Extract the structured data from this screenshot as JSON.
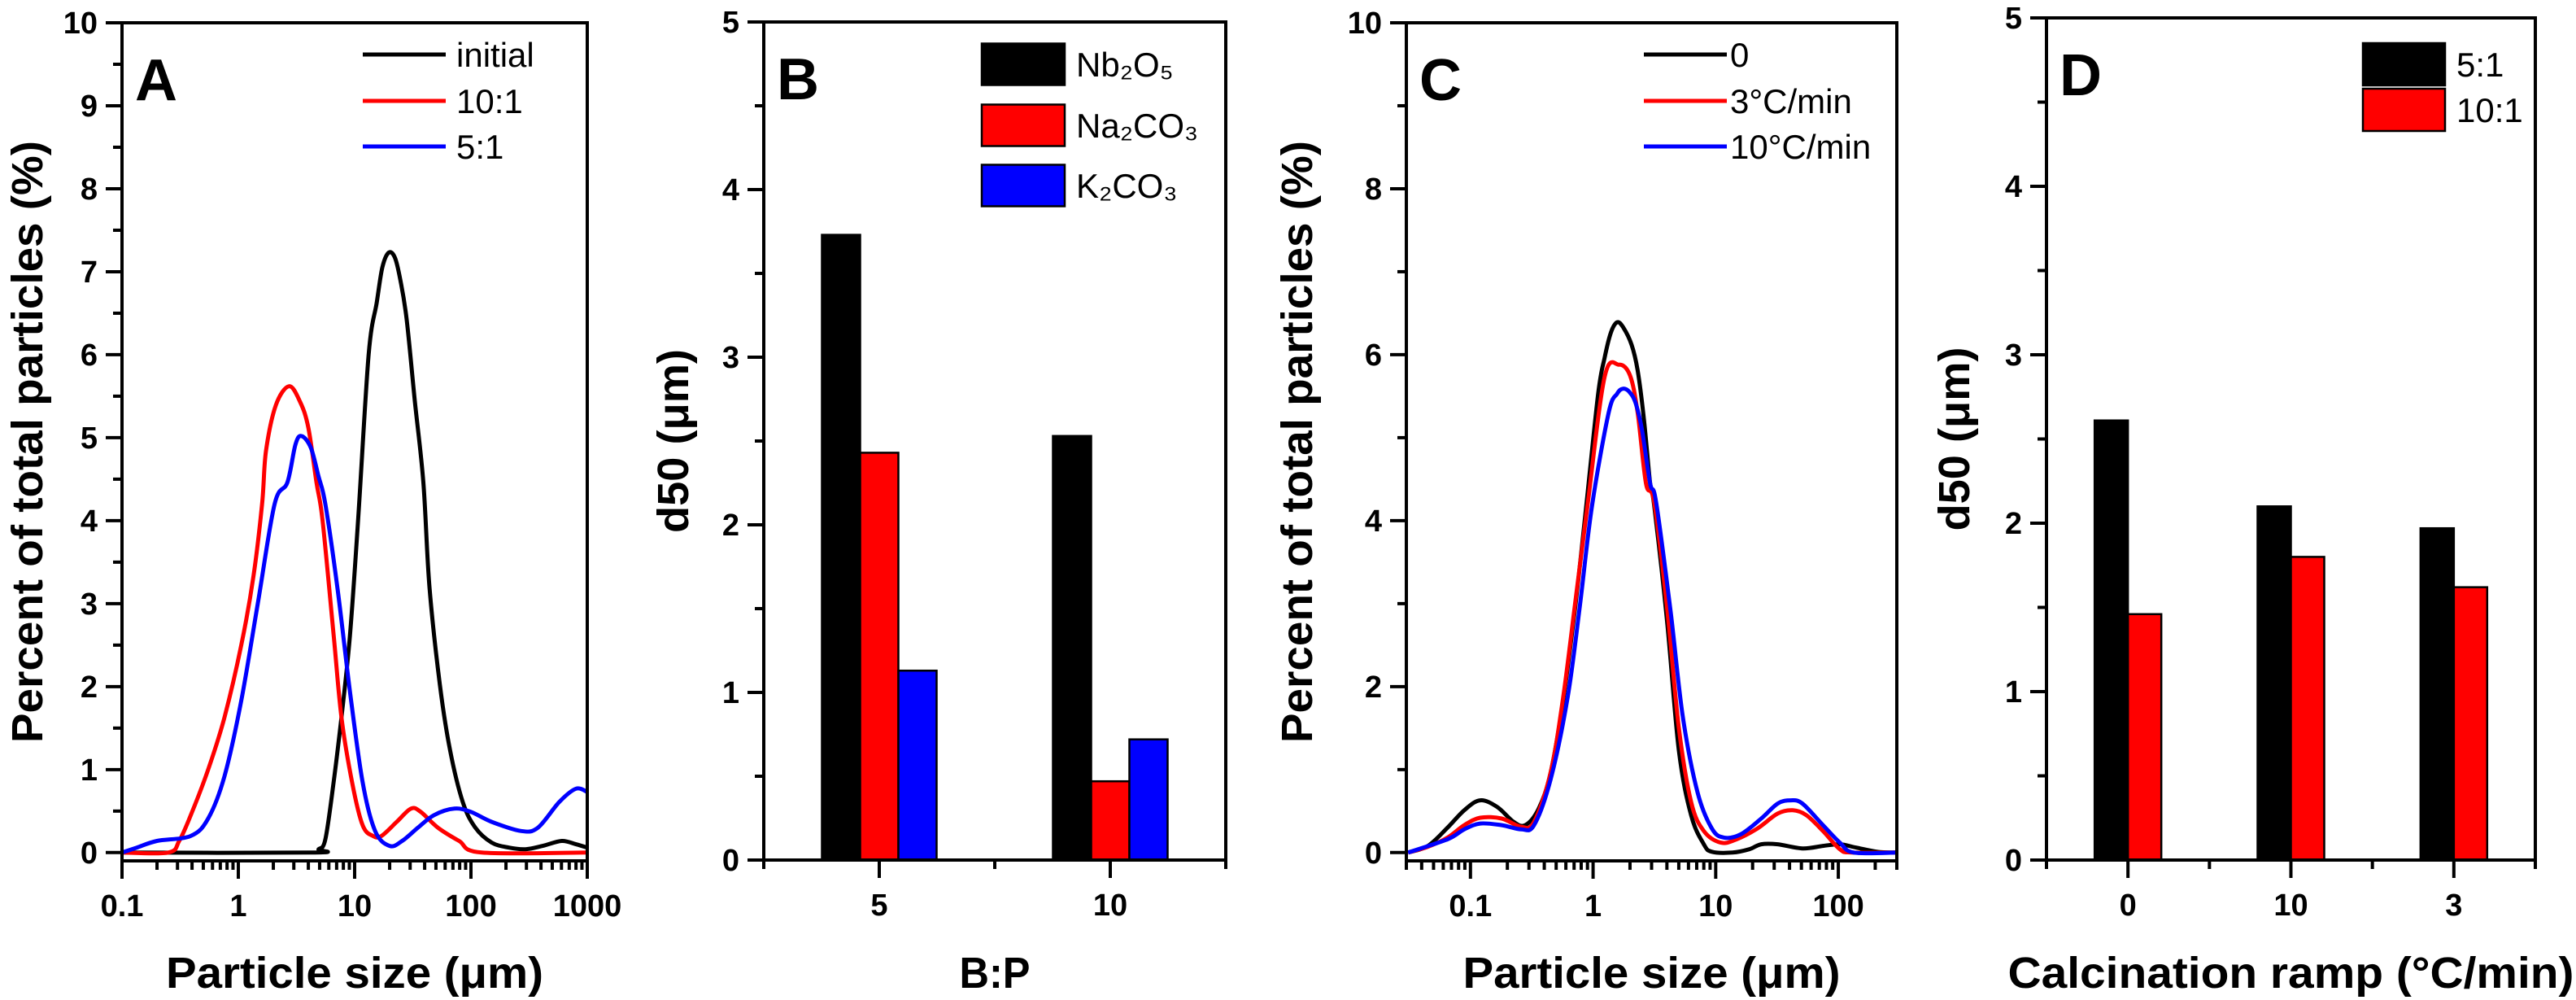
{
  "chart_data": [
    {
      "panel": "A",
      "type": "line",
      "xscale": "log",
      "xlim": [
        0.1,
        1000
      ],
      "ylim": [
        -0.1,
        10
      ],
      "xticks": [
        0.1,
        1,
        10,
        100,
        1000
      ],
      "xtick_labels": [
        "0.1",
        "1",
        "10",
        "100",
        "1000"
      ],
      "yticks": [
        0,
        1,
        2,
        3,
        4,
        5,
        6,
        7,
        8,
        9,
        10
      ],
      "ytick_labels": [
        "0",
        "1",
        "2",
        "3",
        "4",
        "5",
        "6",
        "7",
        "8",
        "9",
        "10"
      ],
      "xlabel": "Particle size (μm)",
      "ylabel": "Percent of total particles (%)",
      "grid": false,
      "legend_position": "top-right",
      "series": [
        {
          "name": "initial",
          "color": "#000000",
          "x": [
            0.1,
            4.3,
            4.9,
            5.6,
            6.6,
            7.7,
            9.1,
            10.7,
            13.2,
            15.5,
            17.3,
            19.6,
            22.2,
            24.7,
            28,
            33,
            39,
            44,
            54,
            66,
            85,
            109,
            151,
            212,
            295,
            414,
            603,
            800,
            1000
          ],
          "y": [
            0,
            0,
            0.04,
            0.16,
            0.85,
            1.63,
            2.6,
            4.0,
            6.0,
            6.63,
            7.05,
            7.23,
            7.17,
            6.9,
            6.43,
            5.43,
            4.46,
            3.2,
            2.03,
            1.24,
            0.61,
            0.3,
            0.12,
            0.06,
            0.04,
            0.08,
            0.14,
            0.1,
            0.06
          ]
        },
        {
          "name": "10:1",
          "color": "#ff0000",
          "x": [
            0.1,
            0.25,
            0.31,
            0.39,
            0.55,
            0.76,
            1.06,
            1.35,
            1.6,
            1.73,
            2.1,
            2.73,
            3.4,
            4.0,
            4.7,
            5.3,
            6.6,
            7.7,
            9.5,
            11.7,
            14.4,
            17,
            23,
            30.5,
            37,
            52,
            79,
            124,
            1000
          ],
          "y": [
            0,
            0,
            0.14,
            0.45,
            1.0,
            1.63,
            2.5,
            3.33,
            4.2,
            4.84,
            5.39,
            5.62,
            5.43,
            5.12,
            4.46,
            4.0,
            2.62,
            1.63,
            0.85,
            0.33,
            0.2,
            0.2,
            0.37,
            0.53,
            0.49,
            0.3,
            0.14,
            0,
            0
          ]
        },
        {
          "name": "5:1",
          "color": "#0000ff",
          "x": [
            0.1,
            0.134,
            0.2,
            0.39,
            0.55,
            0.76,
            1.06,
            1.47,
            2.05,
            2.64,
            3.1,
            3.5,
            4.2,
            4.9,
            5.6,
            7.1,
            9.1,
            11.7,
            15,
            20,
            25.6,
            35,
            48,
            72,
            100,
            151,
            270,
            376,
            575,
            800,
            1000
          ],
          "y": [
            0,
            0.06,
            0.14,
            0.2,
            0.41,
            0.92,
            1.83,
            3.0,
            4.2,
            4.46,
            4.92,
            5.02,
            4.88,
            4.53,
            4.2,
            3.2,
            1.95,
            0.85,
            0.26,
            0.08,
            0.14,
            0.3,
            0.45,
            0.53,
            0.49,
            0.37,
            0.26,
            0.3,
            0.61,
            0.77,
            0.73
          ]
        }
      ]
    },
    {
      "panel": "B",
      "type": "bar",
      "categories": [
        "5",
        "10"
      ],
      "ylim": [
        0,
        5
      ],
      "yticks": [
        0,
        1,
        2,
        3,
        4,
        5
      ],
      "ytick_labels": [
        "0",
        "1",
        "2",
        "3",
        "4",
        "5"
      ],
      "xlabel": "B:P",
      "ylabel": "d50 (μm)",
      "grid": false,
      "legend_position": "top-right",
      "series": [
        {
          "name": "Nb₂O₅",
          "color": "#000000",
          "values": [
            3.73,
            2.53
          ]
        },
        {
          "name": "Na₂CO₃",
          "color": "#ff0000",
          "values": [
            2.43,
            0.47
          ]
        },
        {
          "name": "K₂CO₃",
          "color": "#0000ff",
          "values": [
            1.13,
            0.72
          ]
        }
      ]
    },
    {
      "panel": "C",
      "type": "line",
      "xscale": "log",
      "xlim": [
        0.03,
        300
      ],
      "ylim": [
        -0.1,
        10
      ],
      "xticks": [
        0.1,
        1,
        10,
        100
      ],
      "xtick_labels": [
        "0.1",
        "1",
        "10",
        "100"
      ],
      "yticks": [
        0,
        2,
        4,
        6,
        8,
        10
      ],
      "ytick_labels": [
        "0",
        "2",
        "4",
        "6",
        "8",
        "10"
      ],
      "xlabel": "Particle size (μm)",
      "ylabel": "Percent of total particles (%)",
      "grid": false,
      "legend_position": "top-right",
      "series": [
        {
          "name": "0",
          "color": "#000000",
          "x": [
            0.031,
            0.045,
            0.065,
            0.089,
            0.12,
            0.165,
            0.225,
            0.28,
            0.36,
            0.45,
            0.57,
            0.72,
            0.88,
            1.1,
            1.24,
            1.4,
            1.57,
            1.76,
            2.06,
            2.31,
            2.6,
            2.92,
            3.15,
            4.0,
            5.0,
            6.3,
            8,
            9.3,
            13.7,
            18.8,
            23.5,
            32,
            51,
            75,
            103,
            140,
            208,
            300
          ],
          "y": [
            0,
            0.08,
            0.3,
            0.51,
            0.63,
            0.55,
            0.37,
            0.33,
            0.53,
            0.96,
            1.83,
            3.0,
            4.18,
            5.53,
            5.96,
            6.27,
            6.39,
            6.33,
            6.12,
            5.81,
            5.22,
            4.45,
            4.18,
            2.81,
            1.24,
            0.45,
            0.1,
            0.01,
            0,
            0.04,
            0.1,
            0.1,
            0.05,
            0.08,
            0.1,
            0.06,
            0.01,
            0
          ]
        },
        {
          "name": "3°C/min",
          "color": "#ff0000",
          "x": [
            0.031,
            0.045,
            0.065,
            0.089,
            0.12,
            0.18,
            0.26,
            0.33,
            0.45,
            0.57,
            0.72,
            0.9,
            1.24,
            1.62,
            2.0,
            2.31,
            2.7,
            3.15,
            4.0,
            5.0,
            6.3,
            8,
            11,
            14.8,
            21.9,
            32,
            42.5,
            55,
            75,
            103,
            129,
            300
          ],
          "y": [
            0,
            0.07,
            0.18,
            0.33,
            0.42,
            0.41,
            0.31,
            0.37,
            0.96,
            1.87,
            3.05,
            4.18,
            5.73,
            5.88,
            5.75,
            5.3,
            4.45,
            4.22,
            2.97,
            1.51,
            0.61,
            0.26,
            0.12,
            0.16,
            0.29,
            0.47,
            0.51,
            0.45,
            0.26,
            0.04,
            0,
            0
          ]
        },
        {
          "name": "10°C/min",
          "color": "#0000ff",
          "x": [
            0.031,
            0.065,
            0.089,
            0.12,
            0.18,
            0.26,
            0.33,
            0.45,
            0.62,
            0.78,
            0.98,
            1.34,
            1.57,
            1.76,
            1.98,
            2.22,
            2.5,
            2.92,
            3.27,
            4.3,
            5.4,
            7.1,
            9.3,
            11.7,
            16,
            23.5,
            32,
            41,
            51,
            75,
            103,
            134,
            300
          ],
          "y": [
            0,
            0.16,
            0.28,
            0.35,
            0.33,
            0.28,
            0.33,
            0.88,
            1.87,
            2.97,
            4.18,
            5.3,
            5.53,
            5.59,
            5.55,
            5.42,
            5.1,
            4.45,
            4.22,
            2.89,
            1.63,
            0.73,
            0.29,
            0.18,
            0.22,
            0.41,
            0.59,
            0.63,
            0.59,
            0.33,
            0.12,
            0,
            0
          ]
        }
      ]
    },
    {
      "panel": "D",
      "type": "bar",
      "categories": [
        "0",
        "10",
        "3"
      ],
      "ylim": [
        0,
        5
      ],
      "yticks": [
        0,
        1,
        2,
        3,
        4,
        5
      ],
      "ytick_labels": [
        "0",
        "1",
        "2",
        "3",
        "4",
        "5"
      ],
      "xlabel": "Calcination ramp (°C/min)",
      "ylabel": "d50 (μm)",
      "grid": false,
      "legend_position": "top-right",
      "series": [
        {
          "name": "5:1",
          "color": "#000000",
          "values": [
            2.61,
            2.1,
            1.97
          ]
        },
        {
          "name": "10:1",
          "color": "#ff0000",
          "values": [
            1.46,
            1.8,
            1.62
          ]
        }
      ]
    }
  ]
}
